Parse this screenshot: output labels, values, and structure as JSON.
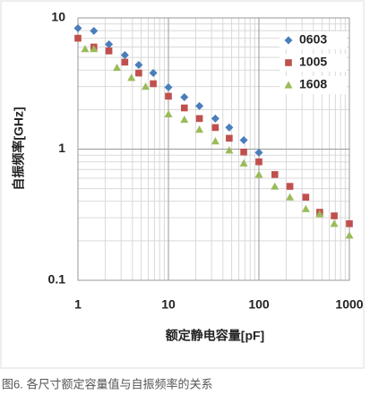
{
  "chart_data": {
    "type": "scatter",
    "x_label": "额定静电容量[pF]",
    "y_label": "自振频率[GHz]",
    "caption": "图6. 各尺寸额定容量值与自振频率的关系",
    "xlog": true,
    "ylog": true,
    "grid": true,
    "legend": "upper right",
    "xlim": [
      1,
      1000
    ],
    "ylim": [
      0.1,
      10
    ],
    "xticks": [
      1,
      10,
      100,
      1000
    ],
    "yticks": [
      0.1,
      1,
      10
    ],
    "series": [
      {
        "name": "0603",
        "color": "#4a7ebb",
        "marker": "diamond",
        "x": [
          1,
          1.5,
          2.2,
          3.3,
          4.7,
          6.8,
          10,
          15,
          22,
          33,
          47,
          68,
          100
        ],
        "values": [
          8.35,
          7.96,
          6.29,
          5.21,
          4.38,
          3.8,
          2.96,
          2.49,
          2.13,
          1.71,
          1.46,
          1.17,
          0.94
        ]
      },
      {
        "name": "1005",
        "color": "#c0504d",
        "marker": "square",
        "x": [
          1,
          1.5,
          2.2,
          3.3,
          4.7,
          6.8,
          10,
          15,
          22,
          33,
          47,
          68,
          100,
          150,
          220,
          330,
          470,
          680,
          1000
        ],
        "values": [
          7.0,
          6.0,
          5.6,
          4.6,
          3.8,
          3.15,
          2.53,
          2.06,
          1.71,
          1.46,
          1.21,
          0.95,
          0.8,
          0.64,
          0.52,
          0.43,
          0.33,
          0.31,
          0.27
        ]
      },
      {
        "name": "1608",
        "color": "#9bbb59",
        "marker": "triangle",
        "x": [
          1.2,
          1.5,
          2.7,
          3.9,
          5.6,
          10,
          15,
          22,
          33,
          47,
          68,
          100,
          150,
          220,
          330,
          470,
          680,
          1000
        ],
        "values": [
          5.8,
          5.8,
          4.18,
          3.5,
          3.0,
          1.85,
          1.68,
          1.41,
          1.15,
          0.98,
          0.78,
          0.64,
          0.52,
          0.43,
          0.35,
          0.32,
          0.27,
          0.22
        ]
      }
    ]
  }
}
